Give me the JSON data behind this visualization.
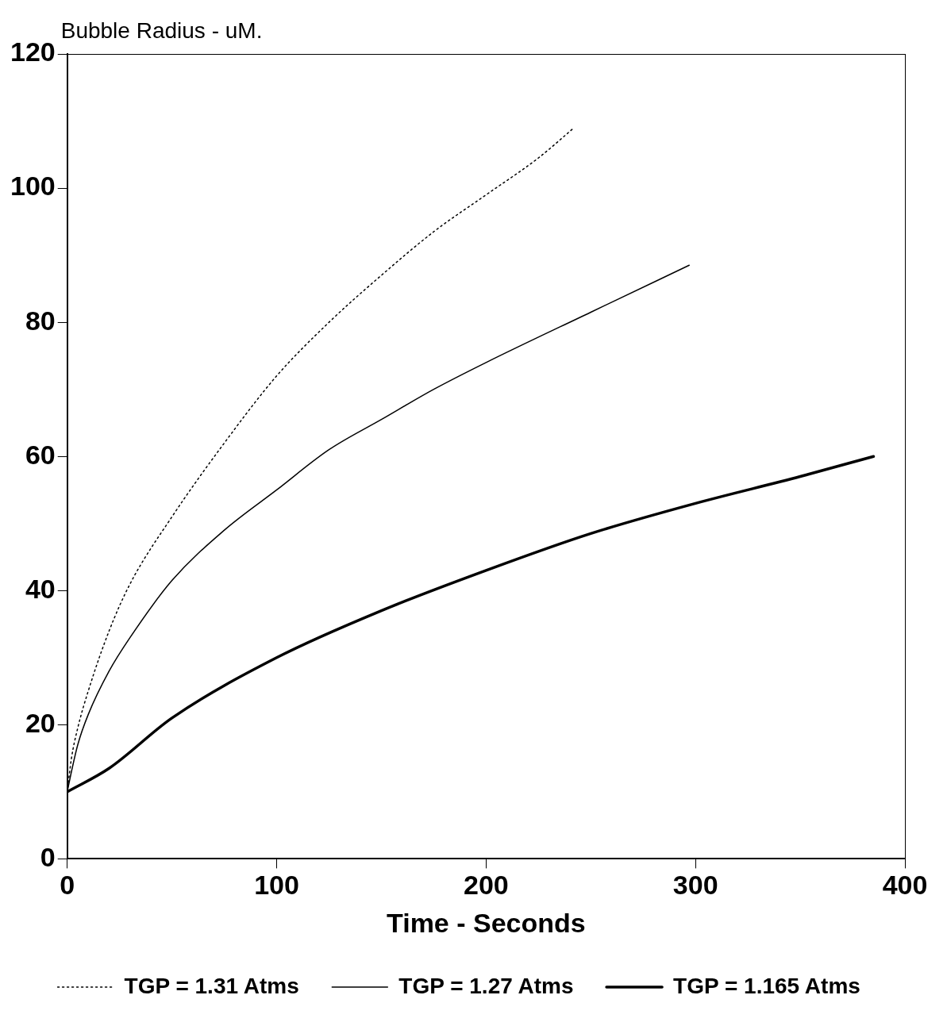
{
  "chart_data": {
    "type": "line",
    "ylabel": "Bubble Radius - uM.",
    "xlabel": "Time - Seconds",
    "xlim": [
      0,
      400
    ],
    "xticks": [
      0,
      100,
      200,
      300,
      400
    ],
    "ylim": [
      0,
      120
    ],
    "yticks": [
      0,
      20,
      40,
      60,
      80,
      100,
      120
    ],
    "grid": false,
    "legend": "bottom",
    "marker": "none",
    "series": [
      {
        "name": "TGP = 1.31 Atms",
        "color": "#000000",
        "line_style": "dotted",
        "x": [
          0,
          2,
          5,
          10,
          20,
          30,
          50,
          75,
          100,
          125,
          150,
          175,
          200,
          225,
          242
        ],
        "values": [
          10,
          15,
          19.5,
          25,
          34,
          41,
          51,
          62,
          72,
          80,
          87,
          93.5,
          99,
          104.5,
          109
        ]
      },
      {
        "name": "TGP = 1.27 Atms",
        "color": "#000000",
        "line_style": "solid",
        "x": [
          0,
          2,
          5,
          10,
          20,
          30,
          50,
          75,
          100,
          125,
          150,
          175,
          200,
          250,
          297
        ],
        "values": [
          10,
          13,
          17,
          21.5,
          28,
          33,
          41.5,
          49,
          55,
          61,
          65.5,
          70,
          74,
          81.5,
          88.5
        ]
      },
      {
        "name": "TGP = 1.165 Atms",
        "color": "#000000",
        "line_style": "solid",
        "x": [
          0,
          20,
          50,
          100,
          150,
          200,
          250,
          300,
          350,
          385
        ],
        "values": [
          10,
          13.5,
          21,
          30,
          37,
          43,
          48.5,
          53,
          57,
          60
        ]
      }
    ]
  }
}
